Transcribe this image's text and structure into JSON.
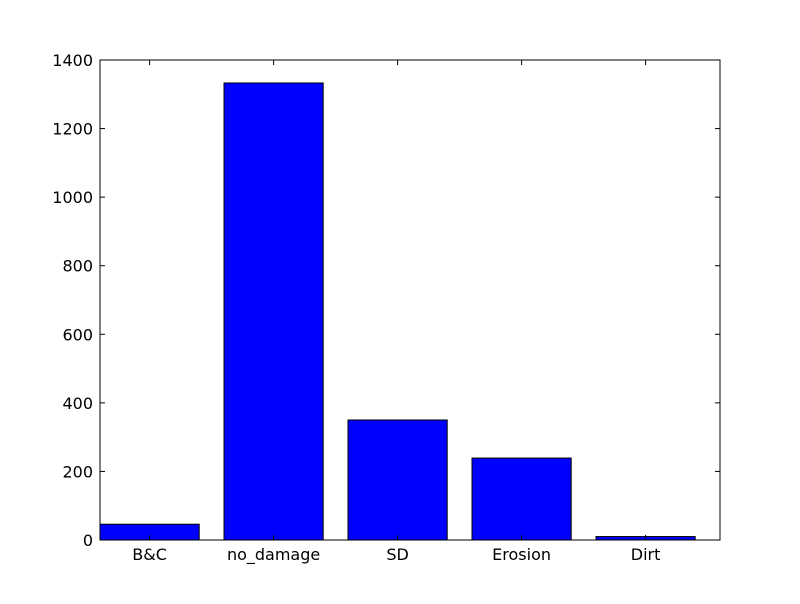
{
  "chart_data": {
    "type": "bar",
    "categories": [
      "B&C",
      "no_damage",
      "SD",
      "Erosion",
      "Dirt"
    ],
    "values": [
      46,
      1333,
      350,
      239,
      10
    ],
    "title": "",
    "xlabel": "",
    "ylabel": "",
    "ylim": [
      0,
      1400
    ],
    "yticks": [
      0,
      200,
      400,
      600,
      800,
      1000,
      1200,
      1400
    ],
    "grid": false,
    "legend": "none",
    "bar_color": "#0000ff",
    "edge_color": "#000000"
  }
}
